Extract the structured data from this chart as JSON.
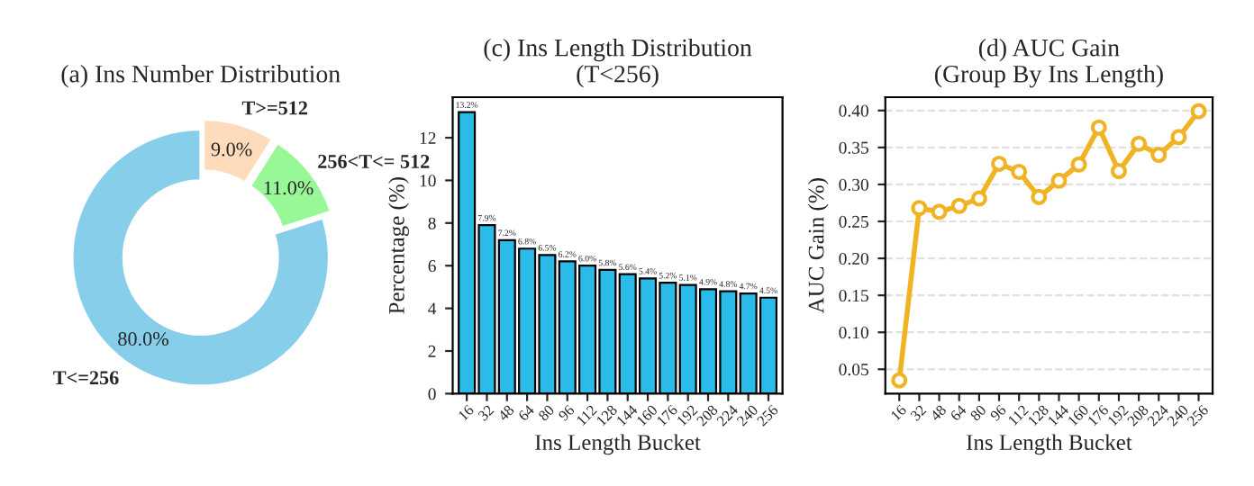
{
  "chart_data": [
    {
      "type": "donut",
      "title": "(a) Ins Number Distribution",
      "categories": [
        "T<=256",
        "256<T<= 512",
        "T>=512"
      ],
      "values": [
        80.0,
        11.0,
        9.0
      ],
      "colors": [
        "#87ceeb",
        "#98f898",
        "#fddbbb"
      ],
      "value_labels": [
        "80.0%",
        "11.0%",
        "9.0%"
      ]
    },
    {
      "type": "bar",
      "title": "(c) Ins Length Distribution\n(T<256)",
      "xlabel": "Ins Length Bucket",
      "ylabel": "Percentage (%)",
      "categories": [
        "16",
        "32",
        "48",
        "64",
        "80",
        "96",
        "112",
        "128",
        "144",
        "160",
        "176",
        "192",
        "208",
        "224",
        "240",
        "256"
      ],
      "values": [
        13.2,
        7.9,
        7.2,
        6.8,
        6.5,
        6.2,
        6.0,
        5.8,
        5.6,
        5.4,
        5.2,
        5.1,
        4.9,
        4.8,
        4.7,
        4.5
      ],
      "color": "#2bbbe8",
      "value_labels": [
        "13.2%",
        "7.9%",
        "7.2%",
        "6.8%",
        "6.5%",
        "6.2%",
        "6.0%",
        "5.8%",
        "5.6%",
        "5.4%",
        "5.2%",
        "5.1%",
        "4.9%",
        "4.8%",
        "4.7%",
        "4.5%"
      ],
      "ylim": [
        0,
        13.9
      ],
      "yticks": [
        0,
        2,
        4,
        6,
        8,
        10,
        12
      ],
      "grid": false
    },
    {
      "type": "line",
      "title": "(d) AUC Gain\n(Group By Ins Length)",
      "xlabel": "Ins Length Bucket",
      "ylabel": "AUC Gain (%)",
      "categories": [
        "16",
        "32",
        "48",
        "64",
        "80",
        "96",
        "112",
        "128",
        "144",
        "160",
        "176",
        "192",
        "208",
        "224",
        "240",
        "256"
      ],
      "values": [
        0.035,
        0.268,
        0.263,
        0.271,
        0.281,
        0.328,
        0.317,
        0.283,
        0.305,
        0.327,
        0.377,
        0.318,
        0.355,
        0.34,
        0.364,
        0.399
      ],
      "color": "#f0b323",
      "ylim": [
        0.017,
        0.418
      ],
      "yticks": [
        {
          "value": 0.05,
          "label": "0.05"
        },
        {
          "value": 0.1,
          "label": "0.10"
        },
        {
          "value": 0.15,
          "label": "0.15"
        },
        {
          "value": 0.2,
          "label": "0.20"
        },
        {
          "value": 0.25,
          "label": "0.25"
        },
        {
          "value": 0.3,
          "label": "0.30"
        },
        {
          "value": 0.35,
          "label": "0.35"
        },
        {
          "value": 0.4,
          "label": "0.40"
        }
      ],
      "grid": "y",
      "marker": "circle",
      "line_style": "solid"
    }
  ]
}
